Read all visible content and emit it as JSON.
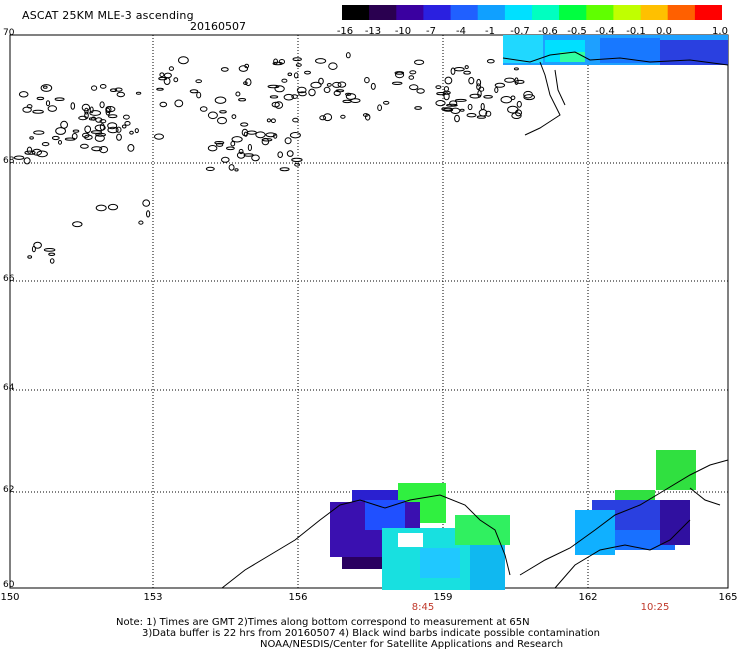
{
  "title": "ASCAT 25KM MLE-3 ascending",
  "date": "20160507",
  "colorbar": {
    "ticks": [
      "-16",
      "-13",
      "-10",
      "-7",
      "-4",
      "-1",
      "-0.7",
      "-0.6",
      "-0.5",
      "-0.4",
      "-0.1",
      "0.0",
      "1.0"
    ],
    "colors": [
      "#000000",
      "#2a0050",
      "#3a00a0",
      "#2a20e0",
      "#2060ff",
      "#10a0ff",
      "#00e0ff",
      "#00ffc0",
      "#00ff40",
      "#60ff00",
      "#c0ff00",
      "#ffc000",
      "#ff6000",
      "#ff0000"
    ]
  },
  "axes": {
    "lat_labels": [
      "70",
      "68",
      "66",
      "64",
      "62",
      "60"
    ],
    "lon_labels": [
      "150",
      "153",
      "156",
      "159",
      "162",
      "165"
    ]
  },
  "times": [
    "8:45",
    "10:25"
  ],
  "notes": {
    "line1": "Note: 1) Times are GMT 2)Times along bottom correspond to measurement at 65N",
    "line2": "3)Data buffer is 22 hrs from 20160507 4) Black wind barbs indicate possible contamination",
    "line3": "NOAA/NESDIS/Center for Satellite Applications and Research"
  }
}
